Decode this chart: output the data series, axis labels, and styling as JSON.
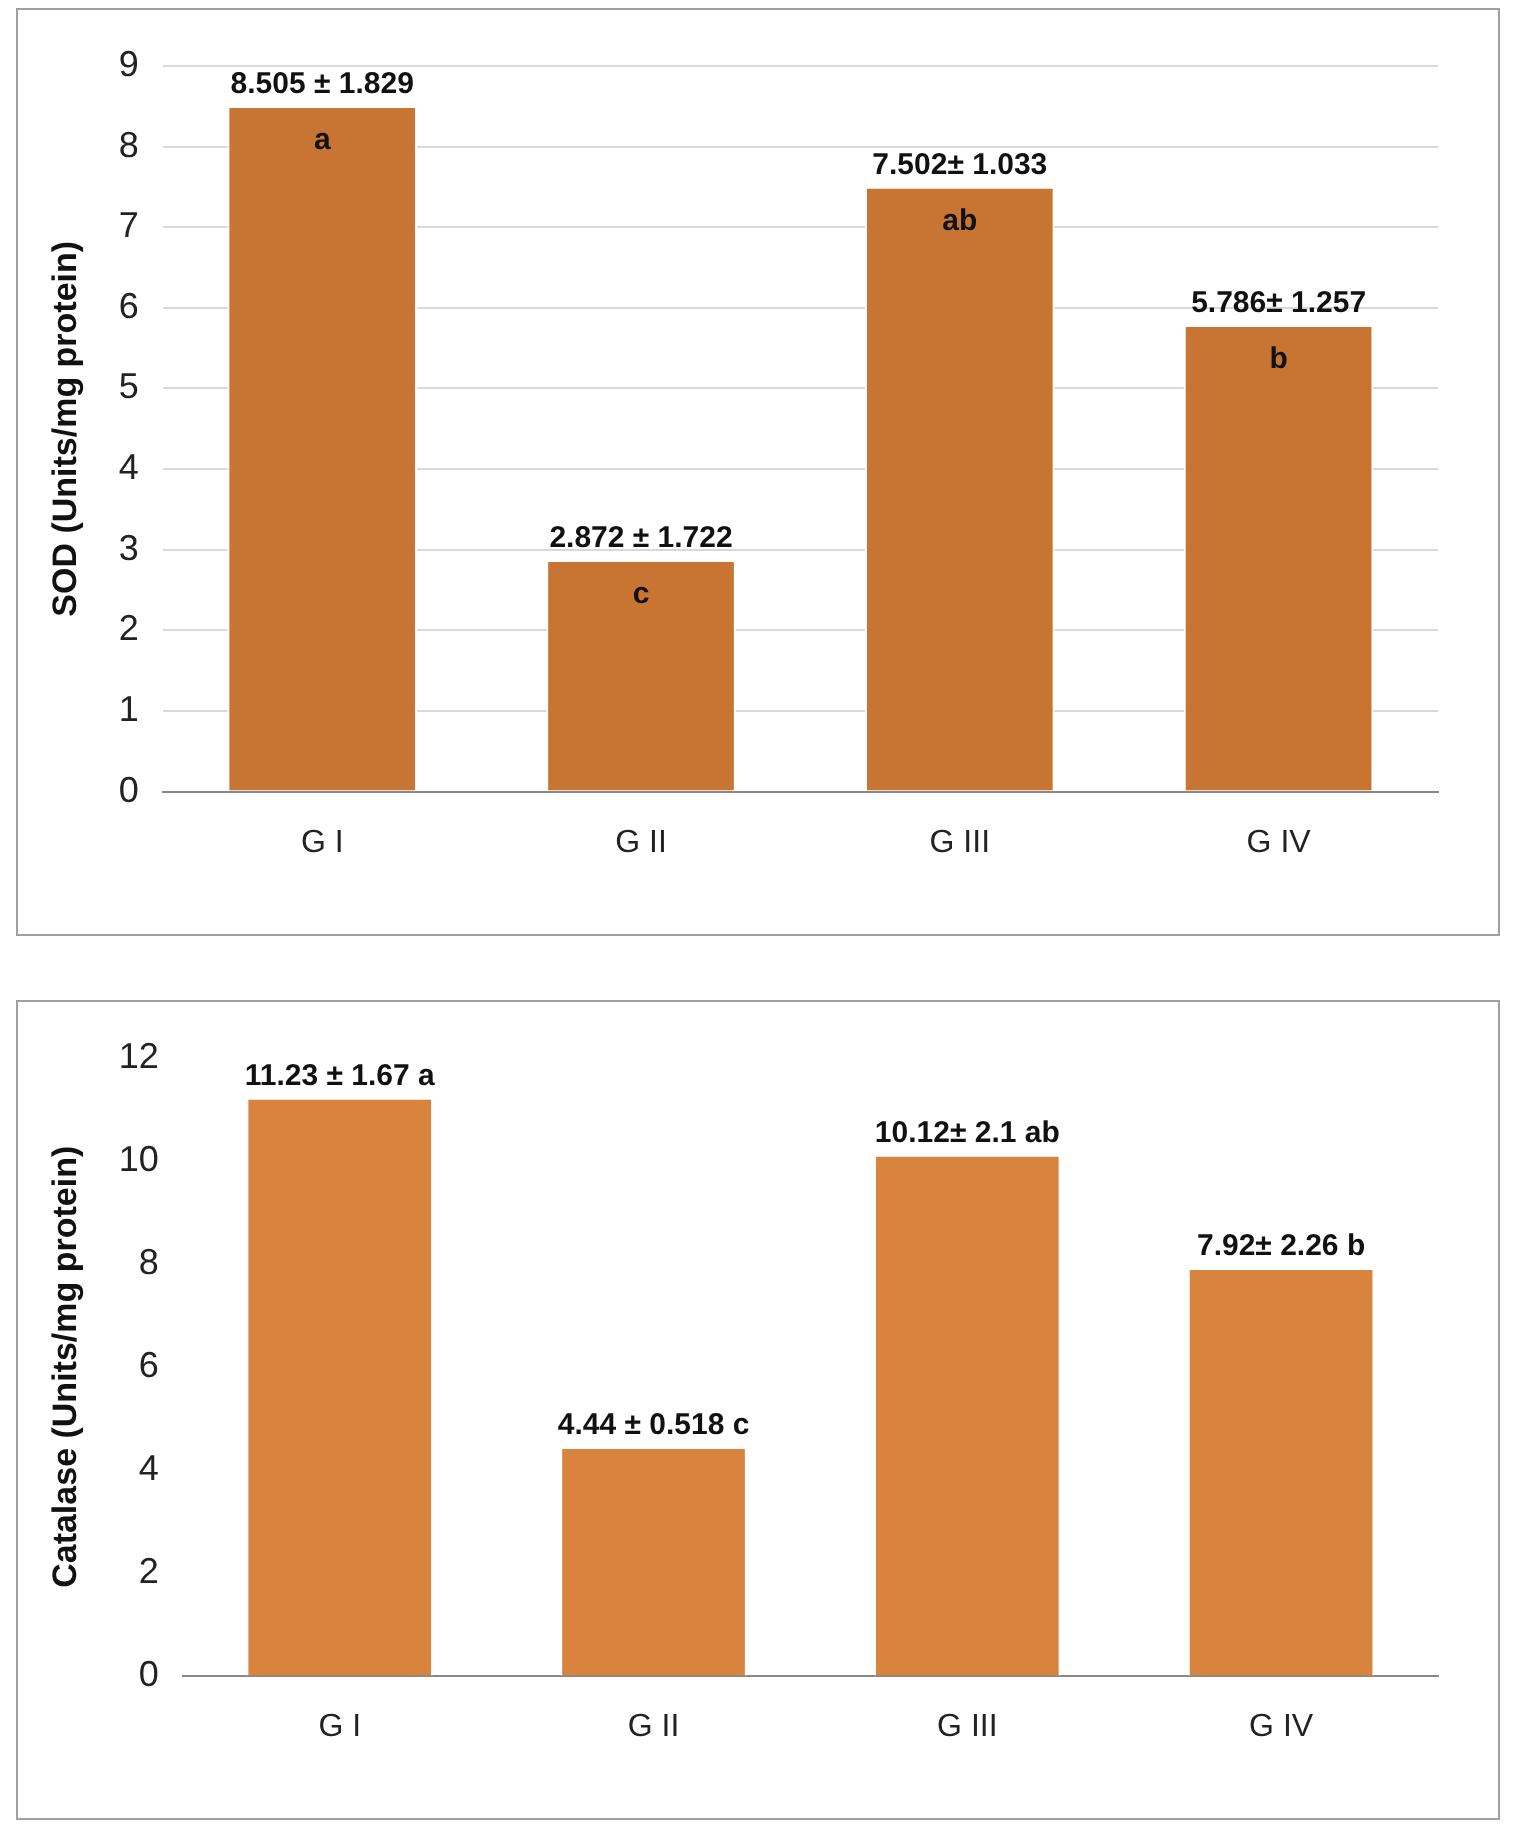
{
  "chart_data": [
    {
      "type": "bar",
      "ylabel": "SOD (Units/mg protein)",
      "categories": [
        "G I",
        "G II",
        "G III",
        "G IV"
      ],
      "values": [
        8.505,
        2.872,
        7.502,
        5.786
      ],
      "color": "#c87533",
      "ylim": [
        0,
        9
      ],
      "yticks": [
        0,
        1,
        2,
        3,
        4,
        5,
        6,
        7,
        8,
        9
      ],
      "grid": "y",
      "legend": false,
      "value_labels": [
        "8.505 ± 1.829",
        "2.872 ± 1.722",
        "7.502± 1.033",
        "5.786± 1.257"
      ],
      "annotations": [
        {
          "text": "a",
          "x": "G I",
          "y": 8.505
        },
        {
          "text": "c",
          "x": "G II",
          "y": 2.872
        },
        {
          "text": "ab",
          "x": "G III",
          "y": 7.502
        },
        {
          "text": "b",
          "x": "G IV",
          "y": 5.786
        }
      ]
    },
    {
      "type": "bar",
      "ylabel": "Catalase (Units/mg protein)",
      "categories": [
        "G I",
        "G II",
        "G III",
        "G IV"
      ],
      "values": [
        11.23,
        4.44,
        10.12,
        7.92
      ],
      "color": "#d9843e",
      "ylim": [
        0,
        12
      ],
      "yticks": [
        0,
        2,
        4,
        6,
        8,
        10,
        12
      ],
      "grid": false,
      "legend": false,
      "value_labels": [
        "11.23 ± 1.67 a",
        "4.44 ± 0.518 c",
        "10.12± 2.1 ab",
        "7.92± 2.26 b"
      ]
    }
  ]
}
